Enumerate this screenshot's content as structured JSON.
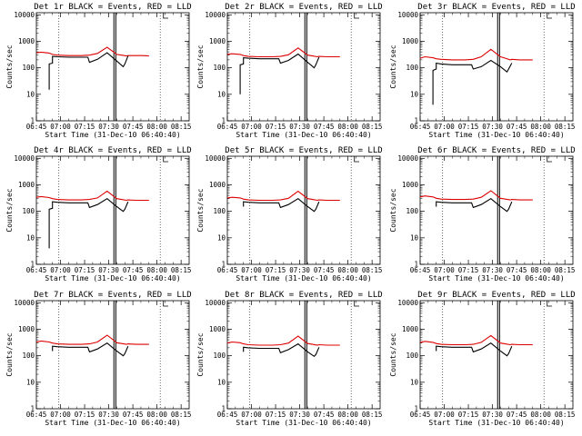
{
  "page": {
    "xlabel": "Start Time (31-Dec-10 06:40:40)",
    "ylabel": "Counts/sec",
    "x_tick_labels": [
      "06:45",
      "07:00",
      "07:15",
      "07:30",
      "07:45",
      "08:00",
      "08:15"
    ],
    "y_tick_labels": [
      "1",
      "10",
      "100",
      "1000",
      "10000"
    ],
    "x_range_minutes": [
      0,
      95
    ],
    "y_range": [
      1,
      12000
    ],
    "series_colors": {
      "events": "#000000",
      "lld": "#dd0000"
    }
  },
  "chart_data": [
    {
      "type": "line",
      "title": "Det 1r BLACK = Events, RED = LLD",
      "detector": "1r",
      "start_time": "31-Dec-10 06:40:40",
      "xlabel": "Start Time (31-Dec-10 06:40:40)",
      "ylabel": "Counts/sec",
      "yscale": "log",
      "ylim": [
        1,
        12000
      ],
      "series": [
        {
          "name": "LLD",
          "color": "red",
          "x": [
            0,
            3,
            8,
            10,
            13,
            20,
            28,
            33,
            38,
            44,
            50,
            53,
            56,
            57,
            62,
            66,
            70
          ],
          "y": [
            370,
            390,
            360,
            320,
            300,
            290,
            290,
            300,
            350,
            600,
            320,
            300,
            280,
            290,
            290,
            290,
            280
          ]
        },
        {
          "name": "Events",
          "color": "black",
          "x": [
            8,
            8,
            10,
            10,
            13,
            20,
            28,
            32,
            33,
            38,
            44,
            50,
            54,
            55,
            57
          ],
          "y": [
            15,
            140,
            150,
            270,
            260,
            250,
            250,
            250,
            160,
            210,
            370,
            180,
            110,
            140,
            280
          ]
        }
      ]
    },
    {
      "type": "line",
      "title": "Det 2r BLACK = Events, RED = LLD",
      "detector": "2r",
      "start_time": "31-Dec-10 06:40:40",
      "xlabel": "Start Time (31-Dec-10 06:40:40)",
      "ylabel": "Counts/sec",
      "yscale": "log",
      "ylim": [
        1,
        12000
      ],
      "series": [
        {
          "name": "LLD",
          "color": "red",
          "x": [
            0,
            3,
            8,
            10,
            13,
            20,
            28,
            33,
            38,
            44,
            50,
            53,
            56,
            57,
            62,
            66,
            70
          ],
          "y": [
            320,
            340,
            320,
            290,
            270,
            260,
            260,
            270,
            310,
            560,
            300,
            280,
            260,
            270,
            260,
            260,
            260
          ]
        },
        {
          "name": "Events",
          "color": "black",
          "x": [
            8,
            8,
            10,
            10,
            13,
            20,
            28,
            32,
            33,
            38,
            44,
            50,
            54,
            55,
            57
          ],
          "y": [
            10,
            130,
            140,
            240,
            230,
            220,
            220,
            220,
            150,
            190,
            330,
            160,
            100,
            130,
            250
          ]
        }
      ]
    },
    {
      "type": "line",
      "title": "Det 3r BLACK = Events, RED = LLD",
      "detector": "3r",
      "start_time": "31-Dec-10 06:40:40",
      "xlabel": "Start Time (31-Dec-10 06:40:40)",
      "ylabel": "Counts/sec",
      "yscale": "log",
      "ylim": [
        1,
        12000
      ],
      "series": [
        {
          "name": "LLD",
          "color": "red",
          "x": [
            0,
            3,
            8,
            10,
            13,
            20,
            28,
            33,
            38,
            44,
            50,
            53,
            56,
            57,
            62,
            66,
            70
          ],
          "y": [
            230,
            260,
            240,
            220,
            210,
            200,
            200,
            210,
            260,
            500,
            260,
            230,
            200,
            210,
            200,
            200,
            200
          ]
        },
        {
          "name": "Events",
          "color": "black",
          "x": [
            8,
            8,
            10,
            10,
            13,
            20,
            28,
            32,
            33,
            38,
            44,
            50,
            54,
            55,
            57
          ],
          "y": [
            4,
            80,
            90,
            150,
            140,
            130,
            130,
            130,
            90,
            110,
            190,
            110,
            70,
            90,
            150
          ]
        }
      ]
    },
    {
      "type": "line",
      "title": "Det 4r BLACK = Events, RED = LLD",
      "detector": "4r",
      "start_time": "31-Dec-10 06:40:40",
      "xlabel": "Start Time (31-Dec-10 06:40:40)",
      "ylabel": "Counts/sec",
      "yscale": "log",
      "ylim": [
        1,
        12000
      ],
      "series": [
        {
          "name": "LLD",
          "color": "red",
          "x": [
            0,
            3,
            8,
            10,
            13,
            20,
            28,
            33,
            38,
            44,
            50,
            53,
            56,
            57,
            62,
            66,
            70
          ],
          "y": [
            340,
            360,
            330,
            300,
            280,
            270,
            270,
            280,
            320,
            580,
            300,
            280,
            260,
            270,
            260,
            260,
            260
          ]
        },
        {
          "name": "Events",
          "color": "black",
          "x": [
            8,
            8,
            10,
            10,
            13,
            20,
            28,
            32,
            33,
            38,
            44,
            50,
            54,
            55,
            57
          ],
          "y": [
            4,
            120,
            130,
            230,
            220,
            210,
            210,
            210,
            140,
            180,
            300,
            150,
            100,
            120,
            230
          ]
        }
      ]
    },
    {
      "type": "line",
      "title": "Det 5r BLACK = Events, RED = LLD",
      "detector": "5r",
      "start_time": "31-Dec-10 06:40:40",
      "xlabel": "Start Time (31-Dec-10 06:40:40)",
      "ylabel": "Counts/sec",
      "yscale": "log",
      "ylim": [
        1,
        12000
      ],
      "series": [
        {
          "name": "LLD",
          "color": "red",
          "x": [
            0,
            3,
            8,
            10,
            13,
            20,
            28,
            33,
            38,
            44,
            50,
            53,
            56,
            57,
            62,
            66,
            70
          ],
          "y": [
            320,
            340,
            320,
            290,
            270,
            260,
            260,
            270,
            310,
            570,
            300,
            280,
            260,
            270,
            260,
            260,
            260
          ]
        },
        {
          "name": "Events",
          "color": "black",
          "x": [
            10,
            10,
            13,
            20,
            28,
            32,
            33,
            38,
            44,
            50,
            54,
            55,
            57
          ],
          "y": [
            150,
            230,
            220,
            210,
            210,
            210,
            140,
            180,
            300,
            150,
            100,
            120,
            230
          ]
        }
      ]
    },
    {
      "type": "line",
      "title": "Det 6r BLACK = Events, RED = LLD",
      "detector": "6r",
      "start_time": "31-Dec-10 06:40:40",
      "xlabel": "Start Time (31-Dec-10 06:40:40)",
      "ylabel": "Counts/sec",
      "yscale": "log",
      "ylim": [
        1,
        12000
      ],
      "series": [
        {
          "name": "LLD",
          "color": "red",
          "x": [
            0,
            3,
            8,
            10,
            13,
            20,
            28,
            33,
            38,
            44,
            50,
            53,
            56,
            57,
            62,
            66,
            70
          ],
          "y": [
            350,
            380,
            350,
            310,
            290,
            280,
            280,
            290,
            340,
            600,
            310,
            290,
            270,
            280,
            270,
            270,
            270
          ]
        },
        {
          "name": "Events",
          "color": "black",
          "x": [
            10,
            10,
            13,
            20,
            28,
            32,
            33,
            38,
            44,
            50,
            54,
            55,
            57
          ],
          "y": [
            150,
            230,
            220,
            210,
            210,
            210,
            140,
            180,
            300,
            150,
            100,
            120,
            230
          ]
        }
      ]
    },
    {
      "type": "line",
      "title": "Det 7r BLACK = Events, RED = LLD",
      "detector": "7r",
      "start_time": "31-Dec-10 06:40:40",
      "xlabel": "Start Time (31-Dec-10 06:40:40)",
      "ylabel": "Counts/sec",
      "yscale": "log",
      "ylim": [
        1,
        12000
      ],
      "series": [
        {
          "name": "LLD",
          "color": "red",
          "x": [
            0,
            3,
            8,
            10,
            13,
            20,
            28,
            33,
            38,
            44,
            50,
            53,
            56,
            57,
            62,
            66,
            70
          ],
          "y": [
            330,
            360,
            330,
            300,
            280,
            270,
            270,
            280,
            330,
            600,
            310,
            290,
            270,
            280,
            270,
            270,
            270
          ]
        },
        {
          "name": "Events",
          "color": "black",
          "x": [
            10,
            10,
            13,
            20,
            28,
            32,
            33,
            38,
            44,
            50,
            54,
            55,
            57
          ],
          "y": [
            150,
            230,
            220,
            210,
            210,
            210,
            140,
            180,
            300,
            150,
            100,
            120,
            230
          ]
        }
      ]
    },
    {
      "type": "line",
      "title": "Det 8r BLACK = Events, RED = LLD",
      "detector": "8r",
      "start_time": "31-Dec-10 06:40:40",
      "xlabel": "Start Time (31-Dec-10 06:40:40)",
      "ylabel": "Counts/sec",
      "yscale": "log",
      "ylim": [
        1,
        12000
      ],
      "series": [
        {
          "name": "LLD",
          "color": "red",
          "x": [
            0,
            3,
            8,
            10,
            13,
            20,
            28,
            33,
            38,
            44,
            50,
            53,
            56,
            57,
            62,
            66,
            70
          ],
          "y": [
            300,
            330,
            310,
            280,
            260,
            250,
            250,
            260,
            300,
            550,
            290,
            270,
            250,
            260,
            250,
            250,
            250
          ]
        },
        {
          "name": "Events",
          "color": "black",
          "x": [
            10,
            10,
            13,
            20,
            28,
            32,
            33,
            38,
            44,
            50,
            54,
            55,
            57
          ],
          "y": [
            140,
            210,
            200,
            190,
            190,
            190,
            130,
            170,
            280,
            140,
            95,
            110,
            210
          ]
        }
      ]
    },
    {
      "type": "line",
      "title": "Det 9r BLACK = Events, RED = LLD",
      "detector": "9r",
      "start_time": "31-Dec-10 06:40:40",
      "xlabel": "Start Time (31-Dec-10 06:40:40)",
      "ylabel": "Counts/sec",
      "yscale": "log",
      "ylim": [
        1,
        12000
      ],
      "series": [
        {
          "name": "LLD",
          "color": "red",
          "x": [
            0,
            3,
            8,
            10,
            13,
            20,
            28,
            33,
            38,
            44,
            50,
            53,
            56,
            57,
            62,
            66,
            70
          ],
          "y": [
            320,
            350,
            320,
            290,
            270,
            260,
            260,
            270,
            320,
            580,
            300,
            280,
            260,
            270,
            260,
            260,
            260
          ]
        },
        {
          "name": "Events",
          "color": "black",
          "x": [
            10,
            10,
            13,
            20,
            28,
            32,
            33,
            38,
            44,
            50,
            54,
            55,
            57
          ],
          "y": [
            150,
            230,
            220,
            210,
            210,
            210,
            140,
            180,
            300,
            150,
            100,
            120,
            230
          ]
        }
      ]
    }
  ]
}
